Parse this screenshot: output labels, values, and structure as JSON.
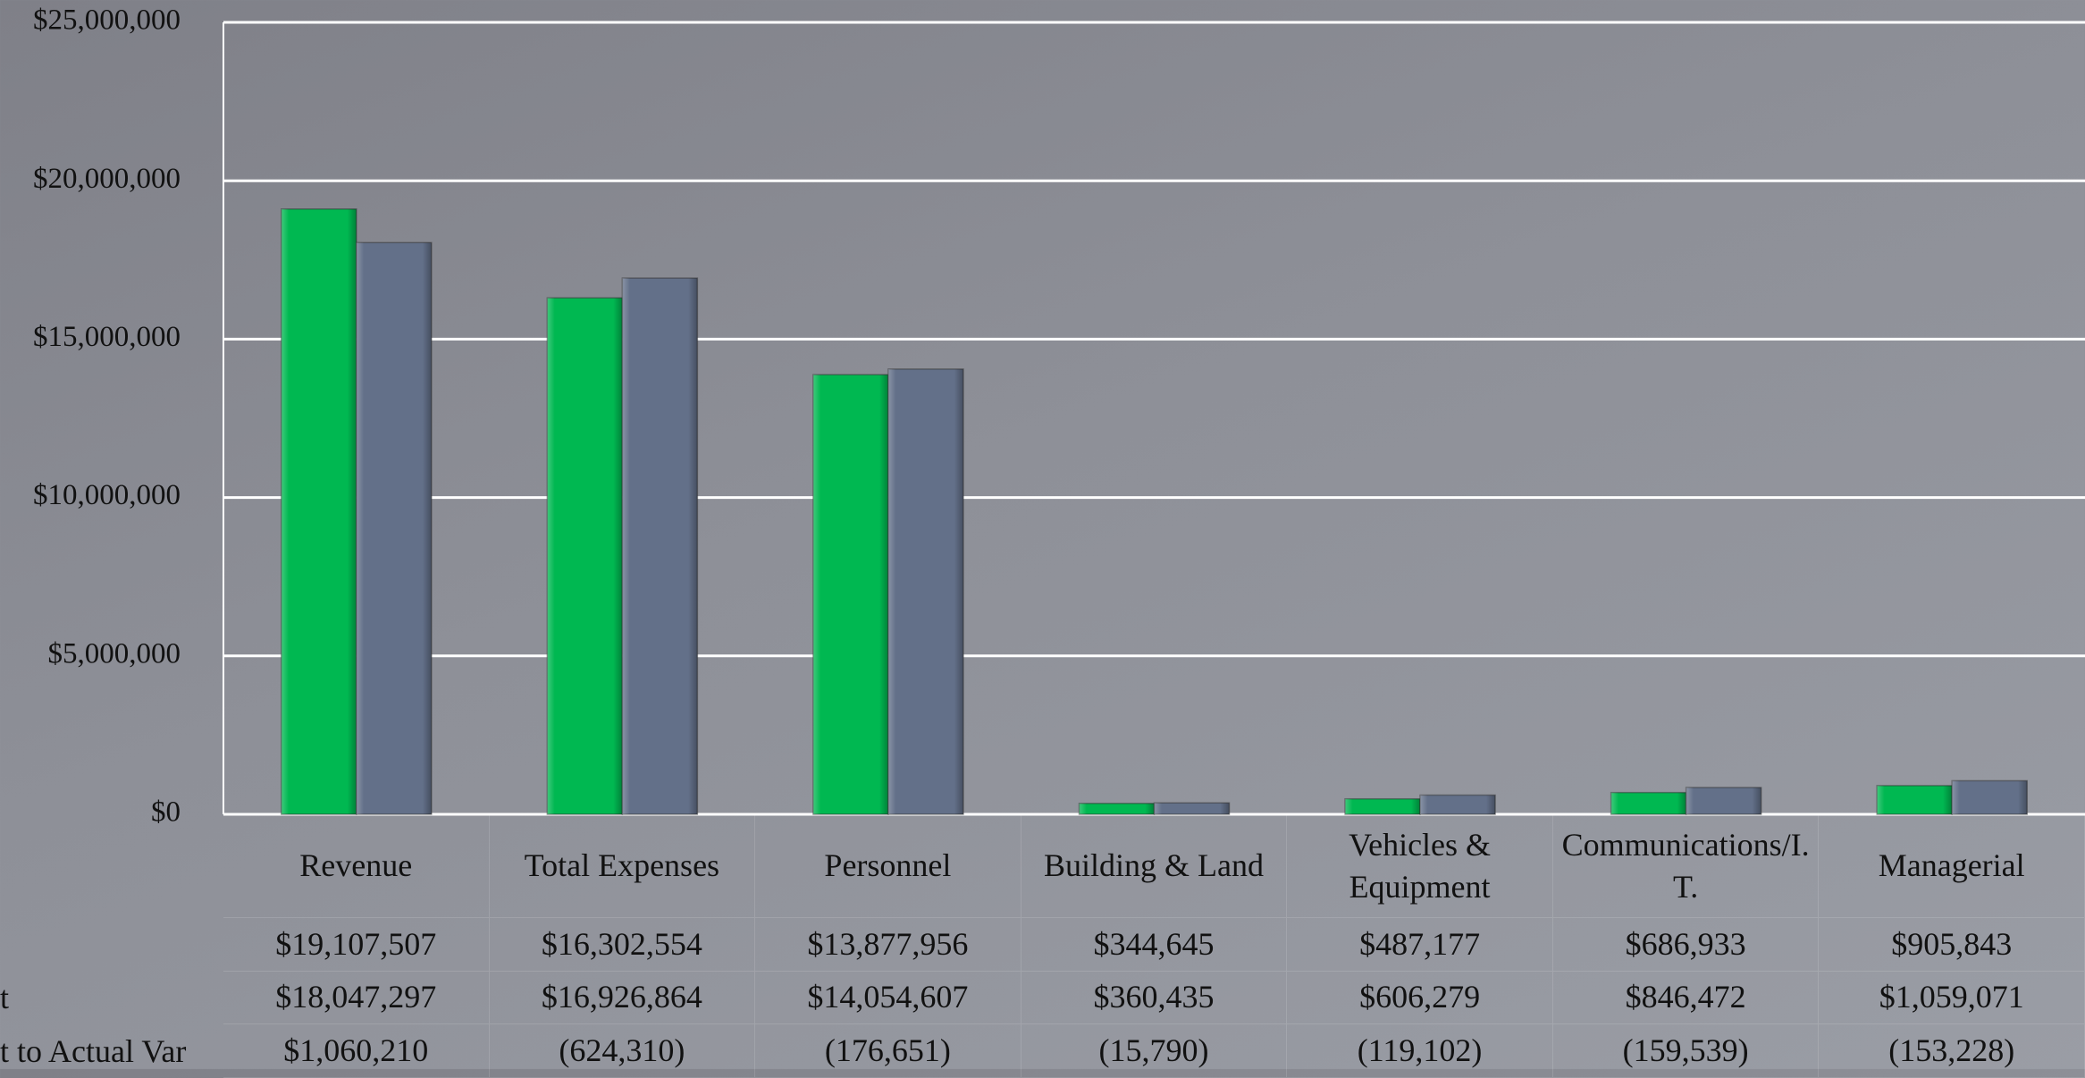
{
  "chart_data": {
    "type": "bar",
    "categories": [
      "Revenue",
      "Total Expenses",
      "Personnel",
      "Building & Land",
      "Vehicles & Equipment",
      "Communications/I.T.",
      "Managerial"
    ],
    "series": [
      {
        "color": "#00b851",
        "values": [
          19107507,
          16302554,
          13877956,
          344645,
          487177,
          686933,
          905843
        ],
        "value_labels": [
          "$19,107,507",
          "$16,302,554",
          "$13,877,956",
          "$344,645",
          "$487,177",
          "$686,933",
          "$905,843"
        ]
      },
      {
        "name": "t",
        "color": "#637089",
        "values": [
          18047297,
          16926864,
          14054607,
          360435,
          606279,
          846472,
          1059071
        ],
        "value_labels": [
          "$18,047,297",
          "$16,926,864",
          "$14,054,607",
          "$360,435",
          "$606,279",
          "$846,472",
          "$1,059,071"
        ]
      }
    ],
    "variance": {
      "name": "t to Actual Var",
      "values": [
        1060210,
        -624310,
        -176651,
        -15790,
        -119102,
        -159539,
        -153228
      ],
      "value_labels": [
        "$1,060,210",
        "(624,310)",
        "(176,651)",
        "(15,790)",
        "(119,102)",
        "(159,539)",
        "(153,228)"
      ]
    },
    "ylim": [
      0,
      25000000
    ],
    "yticks": [
      {
        "value": 0,
        "label": "$0"
      },
      {
        "value": 5000000,
        "label": "$5,000,000"
      },
      {
        "value": 10000000,
        "label": "$10,000,000"
      },
      {
        "value": 15000000,
        "label": "$15,000,000"
      },
      {
        "value": 20000000,
        "label": "$20,000,000"
      },
      {
        "value": 25000000,
        "label": "$25,000,000"
      }
    ],
    "grid": true
  }
}
